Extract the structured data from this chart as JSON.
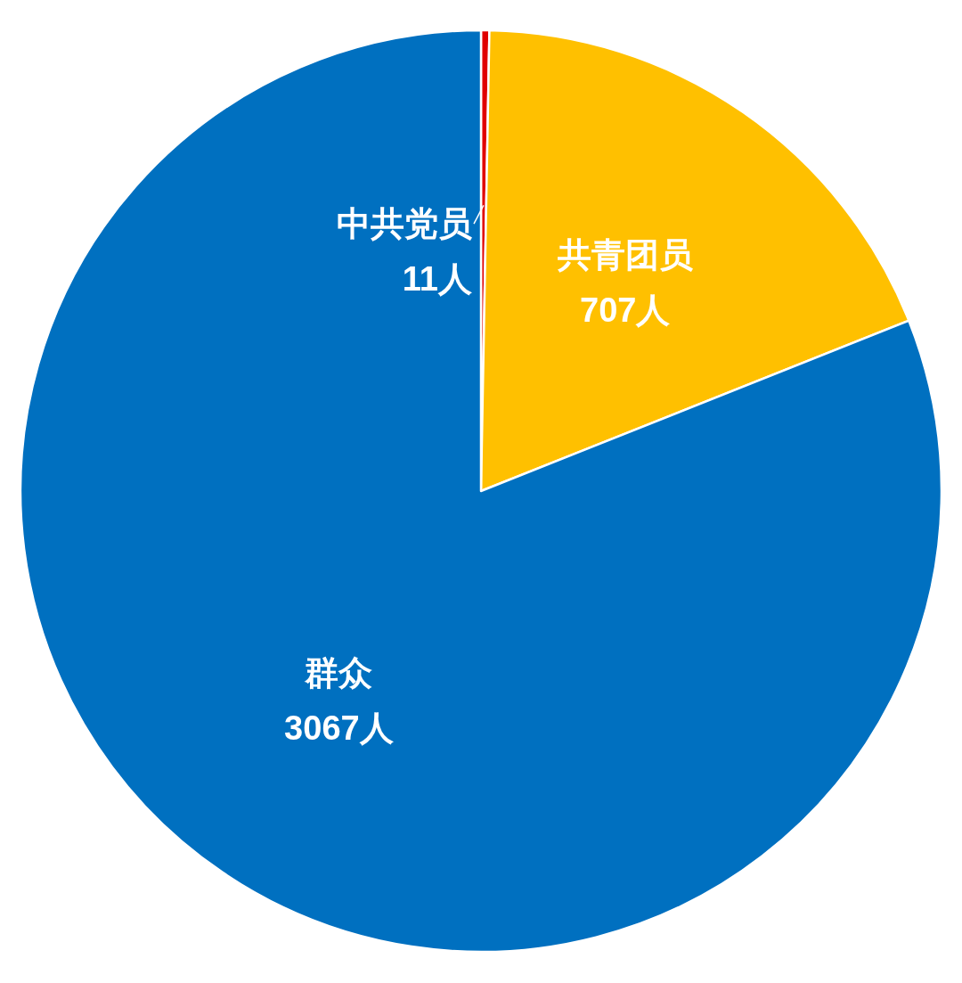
{
  "chart_data": {
    "type": "pie",
    "categories": [
      "中共党员",
      "共青团员",
      "群众"
    ],
    "values": [
      11,
      707,
      3067
    ],
    "value_labels": [
      "11人",
      "707人",
      "3067人"
    ],
    "colors": [
      "#e00000",
      "#ffc000",
      "#0070c0"
    ]
  }
}
